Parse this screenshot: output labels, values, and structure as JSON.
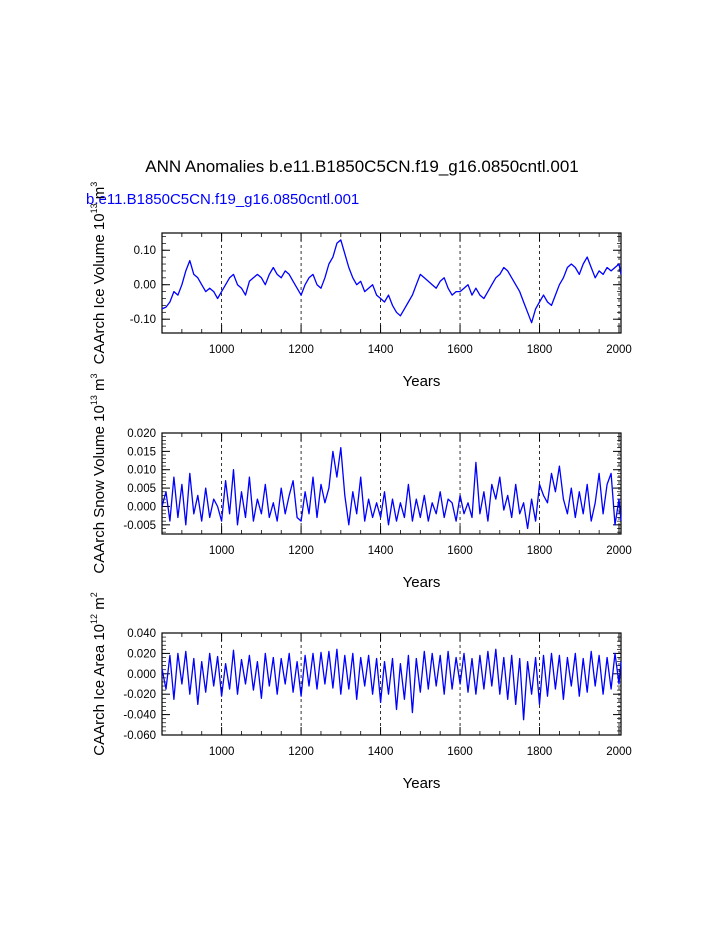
{
  "figure": {
    "title": "ANN Anomalies b.e11.B1850C5CN.f19_g16.0850cntl.001",
    "subtitle": "b.e11.B1850C5CN.f19_g16.0850cntl.001",
    "subtitle_color": "#0000ff"
  },
  "chart_data": [
    {
      "type": "line",
      "xlabel": "Years",
      "ylabel": "CAArch Ice Volume",
      "ylabel_units": "10",
      "ylabel_exp": "13",
      "ylabel_unit": "m",
      "ylabel_unit_exp": "3",
      "xlim": [
        850,
        2005
      ],
      "ylim": [
        -0.14,
        0.15
      ],
      "xticks": [
        1000,
        1200,
        1400,
        1600,
        1800,
        2000
      ],
      "xtick_labels": [
        "1000",
        "1200",
        "1400",
        "1600",
        "1800",
        "2000"
      ],
      "yticks": [
        -0.1,
        0.0,
        0.1
      ],
      "ytick_labels": [
        "-0.10",
        "0.00",
        "0.10"
      ],
      "grid": "vertical dashed at major x ticks",
      "line_color": "#0000ff",
      "series": [
        {
          "x": [
            850,
            860,
            870,
            880,
            890,
            900,
            910,
            920,
            930,
            940,
            950,
            960,
            970,
            980,
            990,
            1000,
            1010,
            1020,
            1030,
            1040,
            1050,
            1060,
            1070,
            1080,
            1090,
            1100,
            1110,
            1120,
            1130,
            1140,
            1150,
            1160,
            1170,
            1180,
            1190,
            1200,
            1210,
            1220,
            1230,
            1240,
            1250,
            1260,
            1270,
            1280,
            1290,
            1300,
            1310,
            1320,
            1330,
            1340,
            1350,
            1360,
            1370,
            1380,
            1390,
            1400,
            1410,
            1420,
            1430,
            1440,
            1450,
            1460,
            1470,
            1480,
            1490,
            1500,
            1510,
            1520,
            1530,
            1540,
            1550,
            1560,
            1570,
            1580,
            1590,
            1600,
            1610,
            1620,
            1630,
            1640,
            1650,
            1660,
            1670,
            1680,
            1690,
            1700,
            1710,
            1720,
            1730,
            1740,
            1750,
            1760,
            1770,
            1780,
            1790,
            1800,
            1810,
            1820,
            1830,
            1840,
            1850,
            1860,
            1870,
            1880,
            1890,
            1900,
            1910,
            1920,
            1930,
            1940,
            1950,
            1960,
            1970,
            1980,
            1990,
            2000,
            2005
          ],
          "values": [
            -0.07,
            -0.065,
            -0.05,
            -0.02,
            -0.03,
            0.0,
            0.04,
            0.07,
            0.03,
            0.02,
            0.0,
            -0.02,
            -0.01,
            -0.02,
            -0.04,
            -0.02,
            0.0,
            0.02,
            0.03,
            0.0,
            -0.01,
            -0.03,
            0.01,
            0.02,
            0.03,
            0.02,
            0.0,
            0.03,
            0.05,
            0.03,
            0.02,
            0.04,
            0.03,
            0.01,
            -0.01,
            -0.03,
            0.0,
            0.02,
            0.03,
            0.0,
            -0.01,
            0.02,
            0.06,
            0.08,
            0.12,
            0.13,
            0.09,
            0.05,
            0.02,
            0.0,
            0.01,
            -0.02,
            -0.01,
            0.0,
            -0.03,
            -0.04,
            -0.05,
            -0.03,
            -0.06,
            -0.08,
            -0.09,
            -0.07,
            -0.05,
            -0.03,
            0.0,
            0.03,
            0.02,
            0.01,
            0.0,
            -0.01,
            0.01,
            0.02,
            -0.01,
            -0.03,
            -0.02,
            -0.02,
            -0.01,
            0.0,
            -0.03,
            -0.01,
            -0.03,
            -0.04,
            -0.02,
            0.0,
            0.02,
            0.03,
            0.05,
            0.04,
            0.02,
            0.0,
            -0.02,
            -0.05,
            -0.08,
            -0.11,
            -0.07,
            -0.05,
            -0.03,
            -0.05,
            -0.06,
            -0.03,
            0.0,
            0.02,
            0.05,
            0.06,
            0.05,
            0.03,
            0.06,
            0.08,
            0.05,
            0.02,
            0.04,
            0.03,
            0.05,
            0.04,
            0.05,
            0.06,
            0.03
          ]
        }
      ]
    },
    {
      "type": "line",
      "xlabel": "Years",
      "ylabel": "CAArch Snow Volume",
      "ylabel_units": "10",
      "ylabel_exp": "13",
      "ylabel_unit": "m",
      "ylabel_unit_exp": "3",
      "xlim": [
        850,
        2005
      ],
      "ylim": [
        -0.0075,
        0.02
      ],
      "xticks": [
        1000,
        1200,
        1400,
        1600,
        1800,
        2000
      ],
      "xtick_labels": [
        "1000",
        "1200",
        "1400",
        "1600",
        "1800",
        "2000"
      ],
      "yticks": [
        -0.005,
        0.0,
        0.005,
        0.01,
        0.015,
        0.02
      ],
      "ytick_labels": [
        "-0.005",
        "0.000",
        "0.005",
        "0.010",
        "0.015",
        "0.020"
      ],
      "grid": "vertical dashed at major x ticks",
      "line_color": "#0000ff",
      "series": [
        {
          "x": [
            850,
            860,
            870,
            880,
            890,
            900,
            910,
            920,
            930,
            940,
            950,
            960,
            970,
            980,
            990,
            1000,
            1010,
            1020,
            1030,
            1040,
            1050,
            1060,
            1070,
            1080,
            1090,
            1100,
            1110,
            1120,
            1130,
            1140,
            1150,
            1160,
            1170,
            1180,
            1190,
            1200,
            1210,
            1220,
            1230,
            1240,
            1250,
            1260,
            1270,
            1280,
            1290,
            1300,
            1310,
            1320,
            1330,
            1340,
            1350,
            1360,
            1370,
            1380,
            1390,
            1400,
            1410,
            1420,
            1430,
            1440,
            1450,
            1460,
            1470,
            1480,
            1490,
            1500,
            1510,
            1520,
            1530,
            1540,
            1550,
            1560,
            1570,
            1580,
            1590,
            1600,
            1610,
            1620,
            1630,
            1640,
            1650,
            1660,
            1670,
            1680,
            1690,
            1700,
            1710,
            1720,
            1730,
            1740,
            1750,
            1760,
            1770,
            1780,
            1790,
            1800,
            1810,
            1820,
            1830,
            1840,
            1850,
            1860,
            1870,
            1880,
            1890,
            1900,
            1910,
            1920,
            1930,
            1940,
            1950,
            1960,
            1970,
            1980,
            1990,
            2000,
            2005
          ],
          "values": [
            0.0,
            0.004,
            -0.004,
            0.008,
            -0.003,
            0.006,
            -0.005,
            0.009,
            -0.002,
            0.003,
            -0.004,
            0.005,
            -0.003,
            0.002,
            0.0,
            -0.004,
            0.007,
            -0.002,
            0.01,
            -0.005,
            0.004,
            -0.003,
            0.008,
            -0.004,
            0.002,
            -0.002,
            0.006,
            -0.003,
            0.001,
            -0.004,
            0.005,
            -0.002,
            0.003,
            0.007,
            -0.003,
            -0.004,
            0.004,
            -0.002,
            0.008,
            -0.003,
            0.006,
            0.001,
            0.005,
            0.015,
            0.008,
            0.016,
            0.003,
            -0.005,
            0.004,
            -0.002,
            0.008,
            -0.004,
            0.002,
            -0.003,
            0.001,
            -0.003,
            0.004,
            -0.005,
            0.002,
            -0.004,
            0.001,
            -0.003,
            0.006,
            -0.004,
            0.002,
            -0.003,
            0.003,
            -0.004,
            0.001,
            -0.002,
            0.004,
            -0.003,
            0.002,
            0.001,
            -0.004,
            0.003,
            -0.002,
            0.001,
            -0.003,
            0.012,
            -0.002,
            0.004,
            -0.004,
            0.006,
            0.002,
            0.008,
            -0.001,
            0.003,
            -0.003,
            0.006,
            -0.002,
            0.001,
            -0.006,
            0.002,
            -0.004,
            0.006,
            0.003,
            0.001,
            0.009,
            0.004,
            0.011,
            0.002,
            -0.002,
            0.005,
            -0.003,
            0.004,
            -0.002,
            0.006,
            -0.004,
            0.001,
            0.009,
            -0.002,
            0.006,
            0.009,
            -0.005,
            0.002,
            -0.004
          ]
        }
      ]
    },
    {
      "type": "line",
      "xlabel": "Years",
      "ylabel": "CAArch Ice Area",
      "ylabel_units": "10",
      "ylabel_exp": "12",
      "ylabel_unit": "m",
      "ylabel_unit_exp": "2",
      "xlim": [
        850,
        2005
      ],
      "ylim": [
        -0.06,
        0.04
      ],
      "xticks": [
        1000,
        1200,
        1400,
        1600,
        1800,
        2000
      ],
      "xtick_labels": [
        "1000",
        "1200",
        "1400",
        "1600",
        "1800",
        "2000"
      ],
      "yticks": [
        -0.06,
        -0.04,
        -0.02,
        0.0,
        0.02,
        0.04
      ],
      "ytick_labels": [
        "-0.060",
        "-0.040",
        "-0.020",
        "0.000",
        "0.020",
        "0.040"
      ],
      "grid": "vertical dashed at major x ticks",
      "line_color": "#0000ff",
      "series": [
        {
          "x": [
            850,
            860,
            870,
            880,
            890,
            900,
            910,
            920,
            930,
            940,
            950,
            960,
            970,
            980,
            990,
            1000,
            1010,
            1020,
            1030,
            1040,
            1050,
            1060,
            1070,
            1080,
            1090,
            1100,
            1110,
            1120,
            1130,
            1140,
            1150,
            1160,
            1170,
            1180,
            1190,
            1200,
            1210,
            1220,
            1230,
            1240,
            1250,
            1260,
            1270,
            1280,
            1290,
            1300,
            1310,
            1320,
            1330,
            1340,
            1350,
            1360,
            1370,
            1380,
            1390,
            1400,
            1410,
            1420,
            1430,
            1440,
            1450,
            1460,
            1470,
            1480,
            1490,
            1500,
            1510,
            1520,
            1530,
            1540,
            1550,
            1560,
            1570,
            1580,
            1590,
            1600,
            1610,
            1620,
            1630,
            1640,
            1650,
            1660,
            1670,
            1680,
            1690,
            1700,
            1710,
            1720,
            1730,
            1740,
            1750,
            1760,
            1770,
            1780,
            1790,
            1800,
            1810,
            1820,
            1830,
            1840,
            1850,
            1860,
            1870,
            1880,
            1890,
            1900,
            1910,
            1920,
            1930,
            1940,
            1950,
            1960,
            1970,
            1980,
            1990,
            2000,
            2005
          ],
          "values": [
            0.005,
            -0.015,
            0.018,
            -0.025,
            0.02,
            -0.01,
            0.022,
            -0.02,
            0.015,
            -0.03,
            0.012,
            -0.018,
            0.02,
            -0.012,
            0.017,
            -0.022,
            0.01,
            -0.015,
            0.023,
            -0.02,
            0.014,
            -0.01,
            0.018,
            -0.016,
            0.012,
            -0.024,
            0.02,
            -0.012,
            0.016,
            -0.02,
            0.015,
            -0.01,
            0.02,
            -0.018,
            0.012,
            -0.022,
            0.018,
            -0.012,
            0.02,
            -0.015,
            0.021,
            -0.01,
            0.022,
            -0.014,
            0.024,
            -0.02,
            0.018,
            -0.015,
            0.02,
            -0.025,
            0.016,
            -0.012,
            0.018,
            -0.02,
            0.015,
            -0.028,
            0.012,
            -0.02,
            0.015,
            -0.035,
            0.01,
            -0.025,
            0.018,
            -0.038,
            0.015,
            -0.018,
            0.022,
            -0.015,
            0.02,
            -0.012,
            0.018,
            -0.02,
            0.022,
            -0.015,
            0.016,
            -0.01,
            0.02,
            -0.018,
            0.015,
            -0.02,
            0.018,
            -0.015,
            0.022,
            -0.012,
            0.024,
            -0.02,
            0.016,
            -0.025,
            0.018,
            -0.03,
            0.015,
            -0.045,
            0.012,
            -0.02,
            0.016,
            -0.03,
            0.018,
            -0.022,
            0.02,
            -0.015,
            0.018,
            -0.025,
            0.016,
            -0.012,
            0.02,
            -0.022,
            0.015,
            -0.018,
            0.022,
            -0.012,
            0.018,
            -0.02,
            0.016,
            -0.015,
            0.02,
            -0.01,
            0.012
          ]
        }
      ]
    }
  ]
}
